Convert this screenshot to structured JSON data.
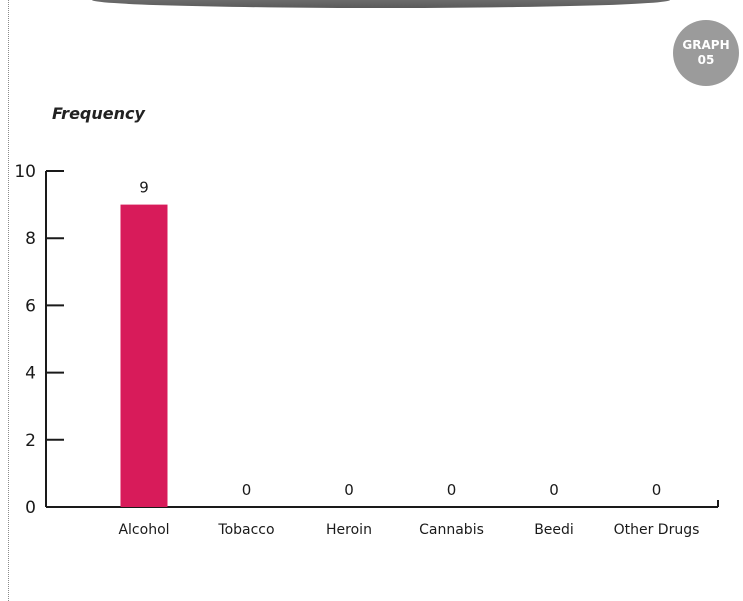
{
  "badge": {
    "line1": "GRAPH",
    "line2": "05"
  },
  "chart_data": {
    "type": "bar",
    "title": "",
    "ylabel": "Frequency",
    "xlabel": "",
    "categories": [
      "Alcohol",
      "Tobacco",
      "Heroin",
      "Cannabis",
      "Beedi",
      "Other Drugs"
    ],
    "values": [
      9,
      0,
      0,
      0,
      0,
      0
    ],
    "data_labels": [
      "9",
      "0",
      "0",
      "0",
      "0",
      "0"
    ],
    "ylim": [
      0,
      10
    ],
    "yticks": [
      0,
      2,
      4,
      6,
      8,
      10
    ],
    "grid": false,
    "legend": "none",
    "bar_color": "#d81b5a",
    "axis_color": "#1a1a1a"
  }
}
